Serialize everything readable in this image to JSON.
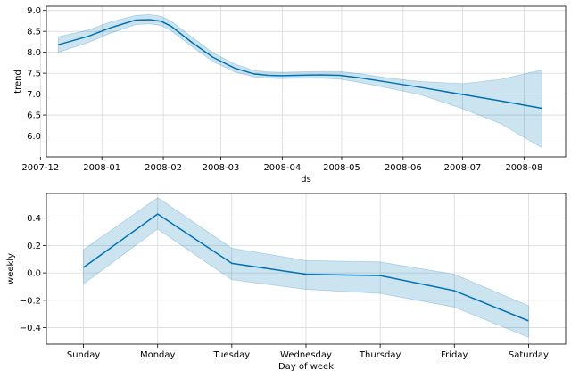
{
  "chart_data": [
    {
      "type": "line",
      "xlabel": "ds",
      "ylabel": "trend",
      "x_axis": "date",
      "xlim": [
        "2007-12-04",
        "2008-08-22"
      ],
      "ylim": [
        5.5,
        9.1
      ],
      "yticks": [
        6.0,
        6.5,
        7.0,
        7.5,
        8.0,
        8.5,
        9.0
      ],
      "ytick_labels": [
        "6.0",
        "6.5",
        "7.0",
        "7.5",
        "8.0",
        "8.5",
        "9.0"
      ],
      "xticks": [
        "2007-12-01",
        "2008-01-01",
        "2008-02-01",
        "2008-03-01",
        "2008-04-01",
        "2008-05-01",
        "2008-06-01",
        "2008-07-01",
        "2008-08-01"
      ],
      "xtick_labels": [
        "2007-12",
        "2008-01",
        "2008-02",
        "2008-03",
        "2008-04",
        "2008-05",
        "2008-06",
        "2008-07",
        "2008-08"
      ],
      "grid": true,
      "color": "#0072B2",
      "band_color": "#0072B2",
      "series": [
        {
          "x": [
            "2007-12-10",
            "2007-12-25",
            "2008-01-05",
            "2008-01-18",
            "2008-01-25",
            "2008-01-31",
            "2008-02-05",
            "2008-02-15",
            "2008-02-26",
            "2008-03-08",
            "2008-03-18",
            "2008-03-25",
            "2008-04-01",
            "2008-04-08",
            "2008-04-20",
            "2008-04-30",
            "2008-05-10",
            "2008-05-25",
            "2008-06-10",
            "2008-07-01",
            "2008-07-20",
            "2008-08-10"
          ],
          "y": [
            8.18,
            8.38,
            8.58,
            8.77,
            8.78,
            8.74,
            8.62,
            8.25,
            7.88,
            7.62,
            7.48,
            7.45,
            7.44,
            7.45,
            7.46,
            7.45,
            7.39,
            7.28,
            7.16,
            6.99,
            6.84,
            6.66
          ],
          "lower": [
            8.0,
            8.23,
            8.45,
            8.66,
            8.68,
            8.64,
            8.51,
            8.15,
            7.78,
            7.53,
            7.41,
            7.38,
            7.37,
            7.38,
            7.38,
            7.36,
            7.28,
            7.14,
            6.98,
            6.65,
            6.3,
            5.72
          ],
          "upper": [
            8.37,
            8.53,
            8.72,
            8.88,
            8.9,
            8.86,
            8.74,
            8.38,
            7.99,
            7.72,
            7.56,
            7.53,
            7.52,
            7.53,
            7.54,
            7.54,
            7.49,
            7.38,
            7.3,
            7.25,
            7.35,
            7.58
          ]
        }
      ]
    },
    {
      "type": "line",
      "xlabel": "Day of week",
      "ylabel": "weekly",
      "categories": [
        "Sunday",
        "Monday",
        "Tuesday",
        "Wednesday",
        "Thursday",
        "Friday",
        "Saturday"
      ],
      "ylim": [
        -0.52,
        0.58
      ],
      "yticks": [
        -0.4,
        -0.2,
        0.0,
        0.2,
        0.4
      ],
      "ytick_labels": [
        "−0.4",
        "−0.2",
        "0.0",
        "0.2",
        "0.4"
      ],
      "grid": true,
      "color": "#0072B2",
      "band_color": "#0072B2",
      "series": [
        {
          "values": [
            0.04,
            0.43,
            0.07,
            -0.01,
            -0.02,
            -0.13,
            -0.35
          ],
          "lower": [
            -0.08,
            0.32,
            -0.05,
            -0.12,
            -0.15,
            -0.25,
            -0.47
          ],
          "upper": [
            0.17,
            0.55,
            0.18,
            0.09,
            0.08,
            -0.01,
            -0.24
          ]
        }
      ]
    }
  ]
}
